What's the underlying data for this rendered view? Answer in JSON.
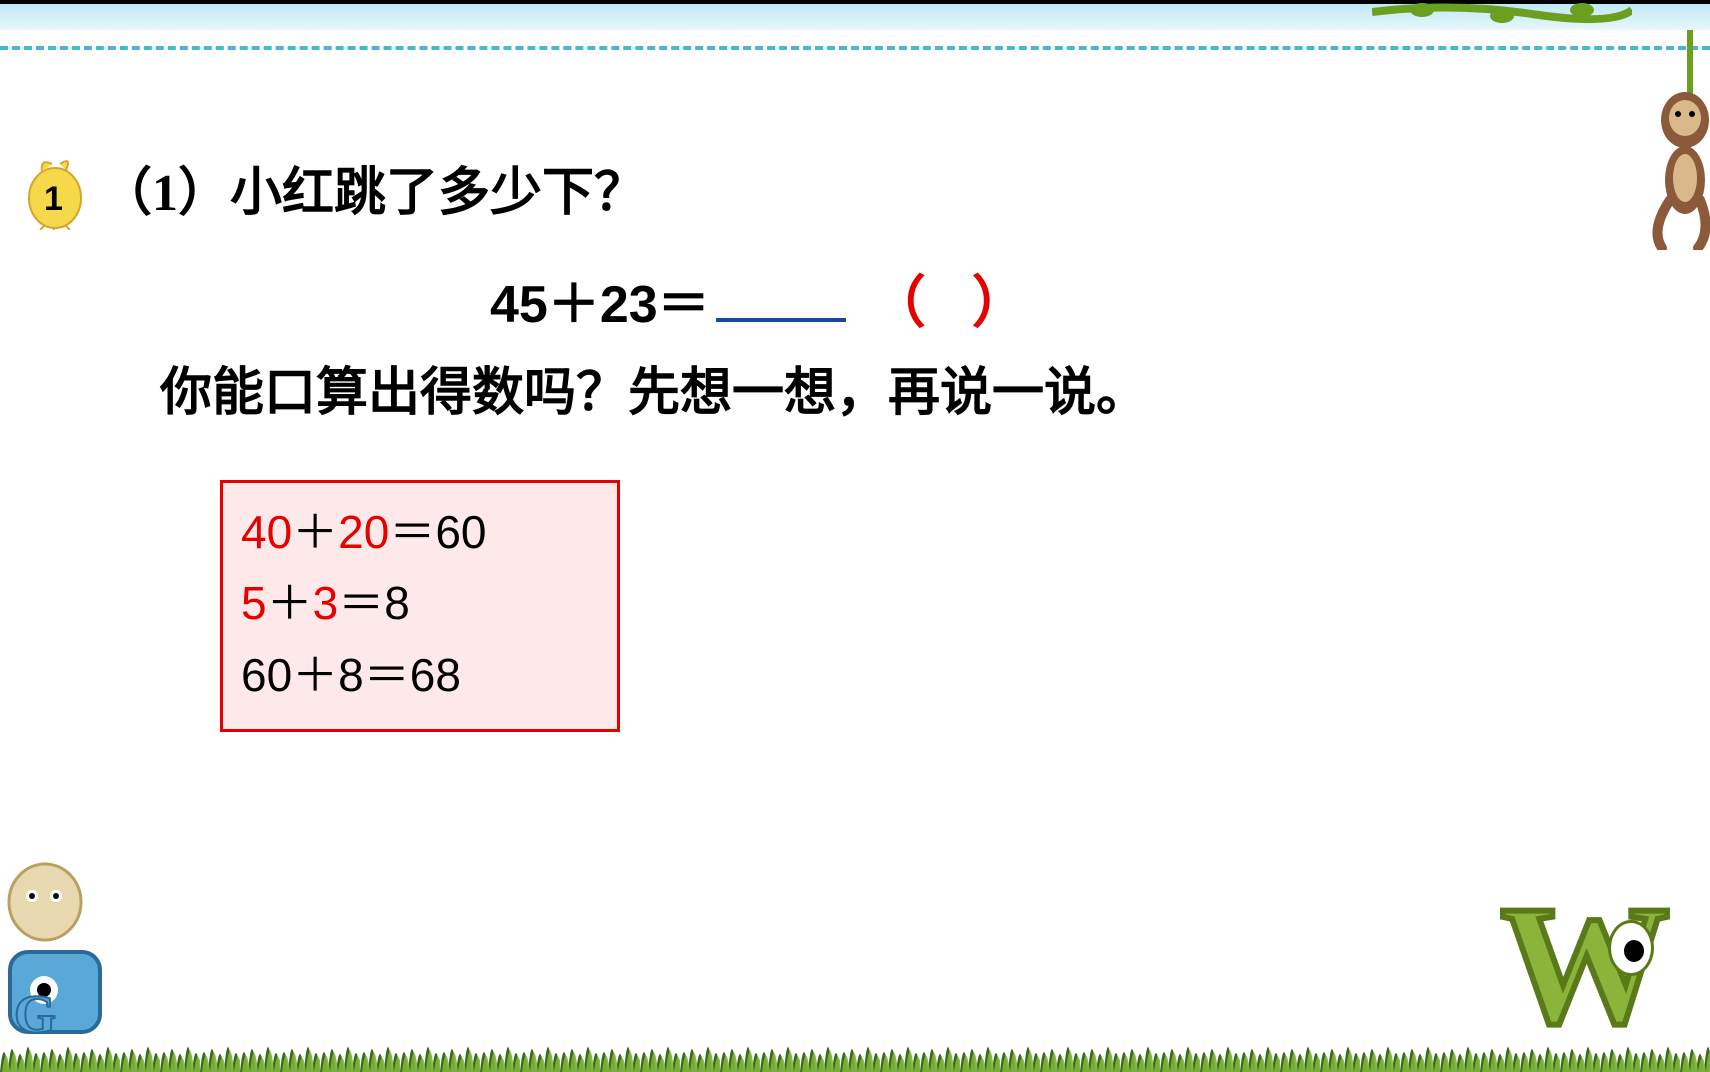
{
  "colors": {
    "topbar": "#000000",
    "bluebar_top": "#bfe8f5",
    "bluebar_bottom": "#e8f7fc",
    "dashed": "#4db4d7",
    "text": "#000000",
    "underline": "#1a4aa0",
    "red": "#e60000",
    "box_border": "#e60000",
    "box_bg": "#fde9e9",
    "grass_dark": "#3a6b1a",
    "grass_light": "#7fb53a",
    "monkey_body": "#8a5a3a",
    "monkey_face": "#d9b98a",
    "vine": "#6aa020",
    "chick_body": "#f5d94a",
    "chick_outline": "#d4a52a",
    "w_fill": "#8ab53a",
    "w_stroke": "#5a7a1a"
  },
  "typography": {
    "question_fontsize": 52,
    "equation_fontsize": 52,
    "workbox_fontsize": 46,
    "badge_fontsize": 34
  },
  "badge": {
    "number": "1"
  },
  "question1": "（1）小红跳了多少下？",
  "equation": {
    "left": "45＋23＝",
    "paren_open": "（",
    "paren_close": "）"
  },
  "question2": "你能口算出得数吗？先想一想，再说一说。",
  "workbox": {
    "lines": [
      {
        "parts": [
          {
            "t": "40",
            "c": "r"
          },
          {
            "t": "＋",
            "c": "k"
          },
          {
            "t": "20",
            "c": "r"
          },
          {
            "t": "＝",
            "c": "k"
          },
          {
            "t": "60",
            "c": "k"
          }
        ]
      },
      {
        "parts": [
          {
            "t": " 5",
            "c": "r"
          },
          {
            "t": "＋",
            "c": "k"
          },
          {
            "t": "3",
            "c": "r"
          },
          {
            "t": "＝",
            "c": "k"
          },
          {
            "t": "8",
            "c": "k"
          }
        ]
      },
      {
        "parts": [
          {
            "t": " 60",
            "c": "k"
          },
          {
            "t": "＋",
            "c": "k"
          },
          {
            "t": "8",
            "c": "k"
          },
          {
            "t": "＝",
            "c": "k"
          },
          {
            "t": "68",
            "c": "k"
          }
        ]
      }
    ]
  },
  "decor": {
    "w_letter": "W"
  }
}
